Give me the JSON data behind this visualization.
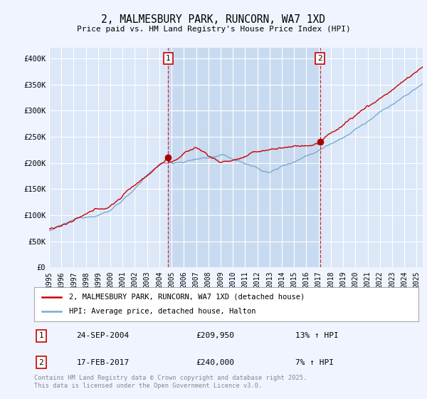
{
  "title": "2, MALMESBURY PARK, RUNCORN, WA7 1XD",
  "subtitle": "Price paid vs. HM Land Registry's House Price Index (HPI)",
  "ylim": [
    0,
    420000
  ],
  "xlim_start": 1995.0,
  "xlim_end": 2025.5,
  "background_color": "#f0f4ff",
  "plot_bg_color": "#dce8f8",
  "shaded_region_color": "#c8daf0",
  "grid_color": "#ffffff",
  "line1_color": "#cc0000",
  "line2_color": "#7aaad0",
  "t1": 2004.73,
  "t2": 2017.12,
  "p1": 209950,
  "p2": 240000,
  "annotation1": {
    "label": "1",
    "date": "24-SEP-2004",
    "price": "£209,950",
    "hpi": "13% ↑ HPI"
  },
  "annotation2": {
    "label": "2",
    "date": "17-FEB-2017",
    "price": "£240,000",
    "hpi": "7% ↑ HPI"
  },
  "legend1": "2, MALMESBURY PARK, RUNCORN, WA7 1XD (detached house)",
  "legend2": "HPI: Average price, detached house, Halton",
  "footer": "Contains HM Land Registry data © Crown copyright and database right 2025.\nThis data is licensed under the Open Government Licence v3.0."
}
